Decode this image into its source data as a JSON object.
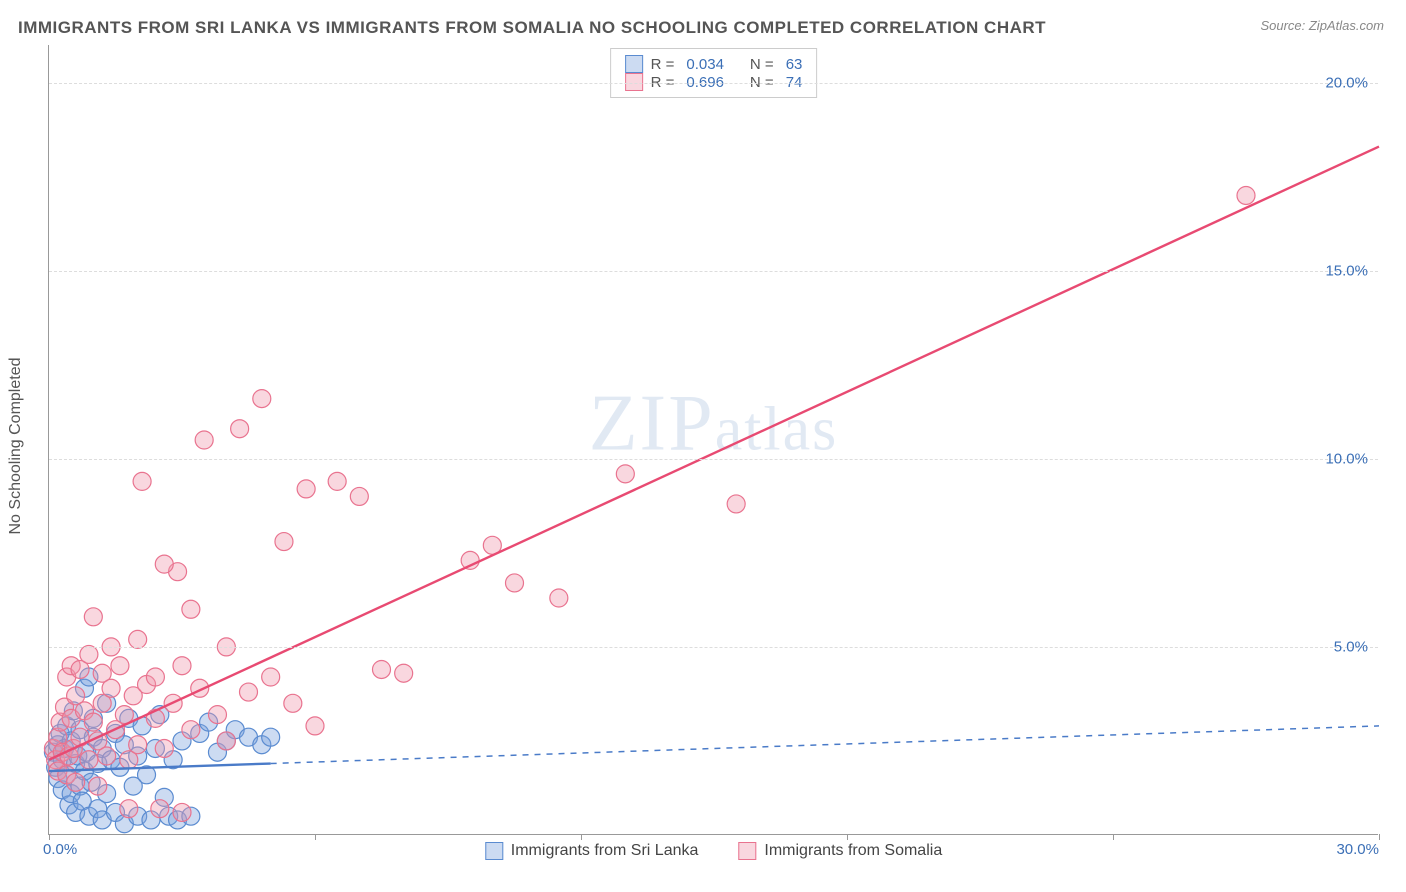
{
  "title": "IMMIGRANTS FROM SRI LANKA VS IMMIGRANTS FROM SOMALIA NO SCHOOLING COMPLETED CORRELATION CHART",
  "source": "Source: ZipAtlas.com",
  "ylabel": "No Schooling Completed",
  "watermark_zip": "ZIP",
  "watermark_atlas": "atlas",
  "chart": {
    "type": "scatter",
    "xlim": [
      0,
      30
    ],
    "ylim": [
      0,
      21
    ],
    "yticks": [
      5.0,
      10.0,
      15.0,
      20.0
    ],
    "ytick_labels": [
      "5.0%",
      "10.0%",
      "15.0%",
      "20.0%"
    ],
    "xticks": [
      0,
      6,
      12,
      18,
      24,
      30
    ],
    "xtick_labels_shown": {
      "first": "0.0%",
      "last": "30.0%"
    },
    "grid_color": "#dddddd",
    "axis_color": "#999999",
    "background_color": "#ffffff",
    "series": [
      {
        "name": "Immigrants from Sri Lanka",
        "short": "sri-lanka",
        "color_fill": "rgba(120,160,220,0.38)",
        "color_stroke": "#5a8bd0",
        "marker_radius": 9,
        "R": "0.034",
        "N": "63",
        "regression": {
          "x1": 0,
          "y1": 1.7,
          "x2": 5,
          "y2": 1.9,
          "dash_x2": 30,
          "dash_y2": 2.9,
          "stroke": "#4a7bc8",
          "width": 2.4
        },
        "points": [
          [
            0.1,
            2.2
          ],
          [
            0.15,
            1.8
          ],
          [
            0.2,
            2.4
          ],
          [
            0.2,
            1.5
          ],
          [
            0.25,
            2.7
          ],
          [
            0.3,
            2.0
          ],
          [
            0.3,
            1.2
          ],
          [
            0.35,
            2.3
          ],
          [
            0.4,
            2.9
          ],
          [
            0.4,
            1.6
          ],
          [
            0.45,
            0.8
          ],
          [
            0.5,
            2.5
          ],
          [
            0.5,
            1.1
          ],
          [
            0.55,
            3.3
          ],
          [
            0.6,
            1.9
          ],
          [
            0.6,
            0.6
          ],
          [
            0.65,
            2.1
          ],
          [
            0.7,
            2.8
          ],
          [
            0.7,
            1.3
          ],
          [
            0.75,
            0.9
          ],
          [
            0.8,
            3.9
          ],
          [
            0.8,
            1.7
          ],
          [
            0.85,
            2.2
          ],
          [
            0.9,
            0.5
          ],
          [
            0.9,
            4.2
          ],
          [
            0.95,
            1.4
          ],
          [
            1.0,
            2.6
          ],
          [
            1.0,
            3.1
          ],
          [
            1.1,
            0.7
          ],
          [
            1.1,
            1.9
          ],
          [
            1.2,
            2.3
          ],
          [
            1.2,
            0.4
          ],
          [
            1.3,
            3.5
          ],
          [
            1.3,
            1.1
          ],
          [
            1.4,
            2.0
          ],
          [
            1.5,
            0.6
          ],
          [
            1.5,
            2.7
          ],
          [
            1.6,
            1.8
          ],
          [
            1.7,
            0.3
          ],
          [
            1.7,
            2.4
          ],
          [
            1.8,
            3.1
          ],
          [
            1.9,
            1.3
          ],
          [
            2.0,
            2.1
          ],
          [
            2.0,
            0.5
          ],
          [
            2.1,
            2.9
          ],
          [
            2.2,
            1.6
          ],
          [
            2.3,
            0.4
          ],
          [
            2.4,
            2.3
          ],
          [
            2.5,
            3.2
          ],
          [
            2.6,
            1.0
          ],
          [
            2.7,
            0.5
          ],
          [
            2.8,
            2.0
          ],
          [
            2.9,
            0.4
          ],
          [
            3.0,
            2.5
          ],
          [
            3.2,
            0.5
          ],
          [
            3.4,
            2.7
          ],
          [
            3.6,
            3.0
          ],
          [
            3.8,
            2.2
          ],
          [
            4.0,
            2.5
          ],
          [
            4.2,
            2.8
          ],
          [
            4.5,
            2.6
          ],
          [
            4.8,
            2.4
          ],
          [
            5.0,
            2.6
          ]
        ]
      },
      {
        "name": "Immigrants from Somalia",
        "short": "somalia",
        "color_fill": "rgba(240,150,170,0.38)",
        "color_stroke": "#e9738f",
        "marker_radius": 9,
        "R": "0.696",
        "N": "74",
        "regression": {
          "x1": 0,
          "y1": 2.0,
          "x2": 30,
          "y2": 18.3,
          "stroke": "#e84a72",
          "width": 2.4
        },
        "points": [
          [
            0.1,
            2.3
          ],
          [
            0.15,
            2.0
          ],
          [
            0.2,
            2.6
          ],
          [
            0.2,
            1.7
          ],
          [
            0.25,
            3.0
          ],
          [
            0.3,
            2.2
          ],
          [
            0.35,
            3.4
          ],
          [
            0.4,
            1.6
          ],
          [
            0.4,
            4.2
          ],
          [
            0.45,
            2.1
          ],
          [
            0.5,
            3.1
          ],
          [
            0.5,
            4.5
          ],
          [
            0.55,
            2.3
          ],
          [
            0.6,
            1.4
          ],
          [
            0.6,
            3.7
          ],
          [
            0.7,
            2.6
          ],
          [
            0.7,
            4.4
          ],
          [
            0.8,
            3.3
          ],
          [
            0.9,
            2.0
          ],
          [
            0.9,
            4.8
          ],
          [
            1.0,
            3.0
          ],
          [
            1.0,
            5.8
          ],
          [
            1.1,
            2.5
          ],
          [
            1.2,
            3.5
          ],
          [
            1.2,
            4.3
          ],
          [
            1.3,
            2.1
          ],
          [
            1.4,
            3.9
          ],
          [
            1.4,
            5.0
          ],
          [
            1.5,
            2.8
          ],
          [
            1.6,
            4.5
          ],
          [
            1.7,
            3.2
          ],
          [
            1.8,
            2.0
          ],
          [
            1.9,
            3.7
          ],
          [
            2.0,
            5.2
          ],
          [
            2.0,
            2.4
          ],
          [
            2.2,
            4.0
          ],
          [
            2.4,
            3.1
          ],
          [
            2.4,
            4.2
          ],
          [
            2.6,
            2.3
          ],
          [
            2.8,
            3.5
          ],
          [
            2.9,
            7.0
          ],
          [
            3.0,
            4.5
          ],
          [
            3.2,
            2.8
          ],
          [
            3.2,
            6.0
          ],
          [
            3.4,
            3.9
          ],
          [
            3.5,
            10.5
          ],
          [
            3.8,
            3.2
          ],
          [
            4.0,
            5.0
          ],
          [
            4.0,
            2.5
          ],
          [
            4.3,
            10.8
          ],
          [
            4.5,
            3.8
          ],
          [
            4.8,
            11.6
          ],
          [
            5.0,
            4.2
          ],
          [
            5.3,
            7.8
          ],
          [
            5.5,
            3.5
          ],
          [
            5.8,
            9.2
          ],
          [
            6.0,
            2.9
          ],
          [
            6.5,
            9.4
          ],
          [
            7.0,
            9.0
          ],
          [
            7.5,
            4.4
          ],
          [
            8.0,
            4.3
          ],
          [
            9.5,
            7.3
          ],
          [
            10.0,
            7.7
          ],
          [
            10.5,
            6.7
          ],
          [
            11.5,
            6.3
          ],
          [
            13.0,
            9.6
          ],
          [
            15.5,
            8.8
          ],
          [
            27.0,
            17.0
          ],
          [
            2.1,
            9.4
          ],
          [
            2.6,
            7.2
          ],
          [
            1.8,
            0.7
          ],
          [
            2.5,
            0.7
          ],
          [
            3.0,
            0.6
          ],
          [
            1.1,
            1.3
          ]
        ]
      }
    ]
  },
  "legend_top_label_R": "R =",
  "legend_top_label_N": "N =",
  "colors": {
    "text_dark": "#555555",
    "text_blue": "#3b6fb6"
  }
}
